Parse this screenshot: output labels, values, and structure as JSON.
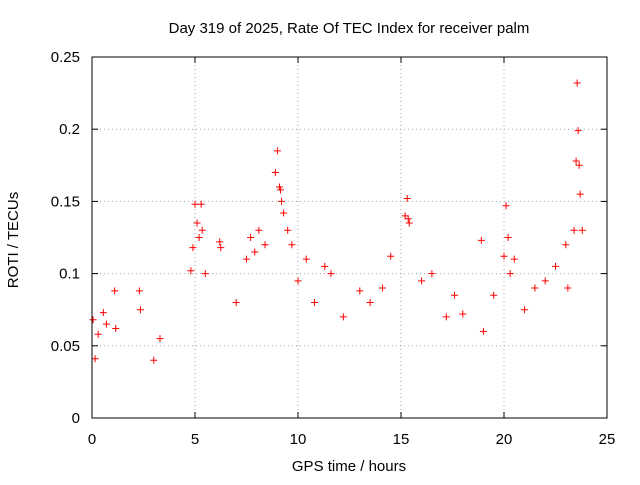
{
  "chart_data": {
    "type": "scatter",
    "title": "Day 319 of 2025, Rate Of TEC Index for receiver palm",
    "xlabel": "GPS time / hours",
    "ylabel": "ROTI / TECUs",
    "xlim": [
      0,
      25
    ],
    "ylim": [
      0,
      0.25
    ],
    "x_ticks": [
      0,
      5,
      10,
      15,
      20,
      25
    ],
    "x_tick_labels": [
      "0",
      "5",
      "10",
      "15",
      "20",
      "25"
    ],
    "y_ticks": [
      0,
      0.05,
      0.1,
      0.15,
      0.2,
      0.25
    ],
    "y_tick_labels": [
      "0",
      "0.05",
      "0.1",
      "0.15",
      "0.2",
      "0.25"
    ],
    "grid": true,
    "marker": "plus",
    "series": [
      {
        "name": "ROTI",
        "color": "#ff0000",
        "x": [
          0.05,
          0.15,
          0.3,
          0.55,
          0.7,
          1.1,
          1.15,
          2.3,
          2.35,
          3.0,
          3.3,
          4.8,
          4.9,
          5.0,
          5.1,
          5.2,
          5.3,
          5.35,
          5.5,
          6.2,
          6.25,
          7.0,
          7.5,
          7.7,
          7.9,
          8.1,
          8.4,
          8.9,
          9.0,
          9.1,
          9.15,
          9.2,
          9.3,
          9.5,
          9.7,
          10.0,
          10.4,
          10.8,
          11.3,
          11.6,
          12.2,
          13.0,
          13.5,
          14.1,
          14.5,
          15.2,
          15.3,
          15.35,
          15.4,
          16.0,
          16.5,
          17.2,
          17.6,
          18.0,
          18.9,
          19.0,
          19.5,
          20.0,
          20.1,
          20.2,
          20.3,
          20.5,
          21.0,
          21.5,
          22.0,
          22.5,
          23.0,
          23.1,
          23.4,
          23.5,
          23.55,
          23.6,
          23.65,
          23.7,
          23.8
        ],
        "y": [
          0.068,
          0.041,
          0.058,
          0.073,
          0.065,
          0.088,
          0.062,
          0.088,
          0.075,
          0.04,
          0.055,
          0.102,
          0.118,
          0.148,
          0.135,
          0.125,
          0.148,
          0.13,
          0.1,
          0.122,
          0.118,
          0.08,
          0.11,
          0.125,
          0.115,
          0.13,
          0.12,
          0.17,
          0.185,
          0.16,
          0.158,
          0.15,
          0.142,
          0.13,
          0.12,
          0.095,
          0.11,
          0.08,
          0.105,
          0.1,
          0.07,
          0.088,
          0.08,
          0.09,
          0.112,
          0.14,
          0.152,
          0.138,
          0.135,
          0.095,
          0.1,
          0.07,
          0.085,
          0.072,
          0.123,
          0.06,
          0.085,
          0.112,
          0.147,
          0.125,
          0.1,
          0.11,
          0.075,
          0.09,
          0.095,
          0.105,
          0.12,
          0.09,
          0.13,
          0.178,
          0.232,
          0.199,
          0.175,
          0.155,
          0.13
        ]
      }
    ]
  }
}
